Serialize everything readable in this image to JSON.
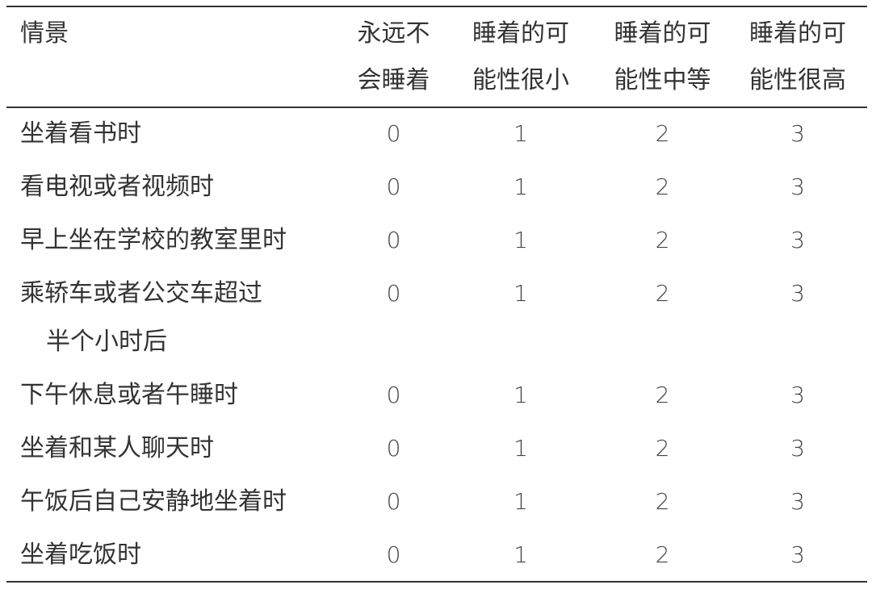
{
  "header": {
    "scenario": "情景",
    "columns": [
      [
        "永远不",
        "会睡着"
      ],
      [
        "睡着的可",
        "能性很小"
      ],
      [
        "睡着的可",
        "能性中等"
      ],
      [
        "睡着的可",
        "能性很高"
      ]
    ]
  },
  "rows": [
    {
      "label": [
        "坐着看书时"
      ],
      "scores": [
        "0",
        "1",
        "2",
        "3"
      ]
    },
    {
      "label": [
        "看电视或者视频时"
      ],
      "scores": [
        "0",
        "1",
        "2",
        "3"
      ]
    },
    {
      "label": [
        "早上坐在学校的教室里时"
      ],
      "scores": [
        "0",
        "1",
        "2",
        "3"
      ]
    },
    {
      "label": [
        "乘轿车或者公交车超过",
        "半个小时后"
      ],
      "scores": [
        "0",
        "1",
        "2",
        "3"
      ]
    },
    {
      "label": [
        "下午休息或者午睡时"
      ],
      "scores": [
        "0",
        "1",
        "2",
        "3"
      ]
    },
    {
      "label": [
        "坐着和某人聊天时"
      ],
      "scores": [
        "0",
        "1",
        "2",
        "3"
      ]
    },
    {
      "label": [
        "午饭后自己安静地坐着时"
      ],
      "scores": [
        "0",
        "1",
        "2",
        "3"
      ]
    },
    {
      "label": [
        "坐着吃饭时"
      ],
      "scores": [
        "0",
        "1",
        "2",
        "3"
      ]
    }
  ]
}
